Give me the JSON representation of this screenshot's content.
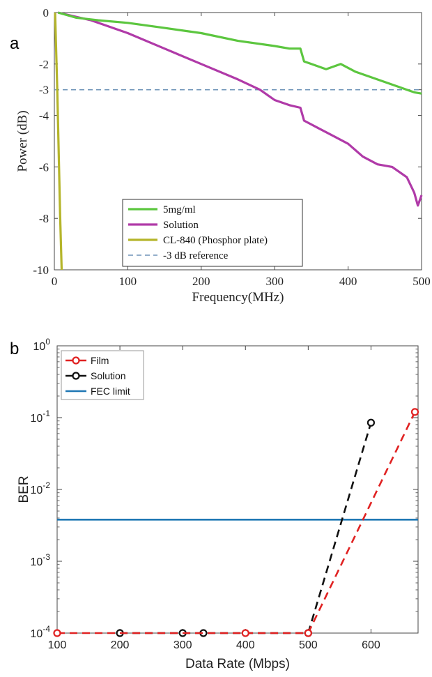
{
  "chart_data": [
    {
      "panel_label": "a",
      "type": "line",
      "xlabel": "Frequency(MHz)",
      "ylabel": "Power (dB)",
      "xlim": [
        0,
        500
      ],
      "ylim": [
        -10,
        0
      ],
      "xticks": [
        0,
        100,
        200,
        300,
        400,
        500
      ],
      "yticks": [
        0,
        -2,
        -3,
        -4,
        -6,
        -8,
        -10
      ],
      "grid": false,
      "legend_position": "bottom-center",
      "series": [
        {
          "name": "5mg/ml",
          "color": "#5cc63f",
          "style": "solid",
          "x": [
            5,
            30,
            60,
            100,
            150,
            200,
            250,
            300,
            320,
            335,
            340,
            350,
            370,
            390,
            410,
            430,
            450,
            470,
            480,
            490,
            500
          ],
          "y": [
            0,
            -0.2,
            -0.3,
            -0.4,
            -0.6,
            -0.8,
            -1.1,
            -1.3,
            -1.4,
            -1.4,
            -1.9,
            -2.0,
            -2.2,
            -2.0,
            -2.3,
            -2.5,
            -2.7,
            -2.9,
            -3.0,
            -3.1,
            -3.15
          ]
        },
        {
          "name": "Solution",
          "color": "#b03aa8",
          "style": "solid",
          "x": [
            5,
            50,
            100,
            150,
            200,
            250,
            280,
            300,
            320,
            335,
            340,
            360,
            380,
            400,
            420,
            440,
            460,
            480,
            490,
            495,
            500
          ],
          "y": [
            0,
            -0.3,
            -0.8,
            -1.4,
            -2.0,
            -2.6,
            -3.0,
            -3.4,
            -3.6,
            -3.7,
            -4.2,
            -4.5,
            -4.8,
            -5.1,
            -5.6,
            -5.9,
            -6.0,
            -6.4,
            -7.0,
            -7.5,
            -7.1
          ]
        },
        {
          "name": "CL-840 (Phosphor plate)",
          "color": "#b5b52a",
          "style": "solid",
          "x": [
            1,
            2,
            4,
            6,
            8,
            10
          ],
          "y": [
            0,
            -1.0,
            -3.0,
            -5.5,
            -8.0,
            -10.0
          ]
        },
        {
          "name": "-3 dB reference",
          "color": "#6f94b8",
          "style": "dashed",
          "x": [
            0,
            500
          ],
          "y": [
            -3,
            -3
          ]
        }
      ]
    },
    {
      "panel_label": "b",
      "type": "line",
      "xlabel": "Data Rate (Mbps)",
      "ylabel": "BER",
      "xlim": [
        100,
        675
      ],
      "ylim": [
        0.0001,
        1
      ],
      "yscale": "log",
      "xticks": [
        100,
        200,
        300,
        400,
        500,
        600
      ],
      "yticks": [
        "10^0",
        "10^-1",
        "10^-2",
        "10^-3",
        "10^-4"
      ],
      "grid": false,
      "legend_position": "top-left",
      "series": [
        {
          "name": "Film",
          "color": "#e02222",
          "style": "dashed",
          "marker": "circle",
          "x": [
            100,
            400,
            500,
            670
          ],
          "y": [
            0.0001,
            0.0001,
            0.0001,
            0.12
          ]
        },
        {
          "name": "Solution",
          "color": "#111111",
          "style": "dashed",
          "marker": "circle",
          "x": [
            200,
            300,
            333,
            500,
            600
          ],
          "y": [
            0.0001,
            0.0001,
            0.0001,
            0.0001,
            0.085
          ]
        },
        {
          "name": "FEC limit",
          "color": "#1f77b4",
          "style": "solid",
          "x": [
            100,
            675
          ],
          "y": [
            0.0038,
            0.0038
          ]
        }
      ]
    }
  ]
}
